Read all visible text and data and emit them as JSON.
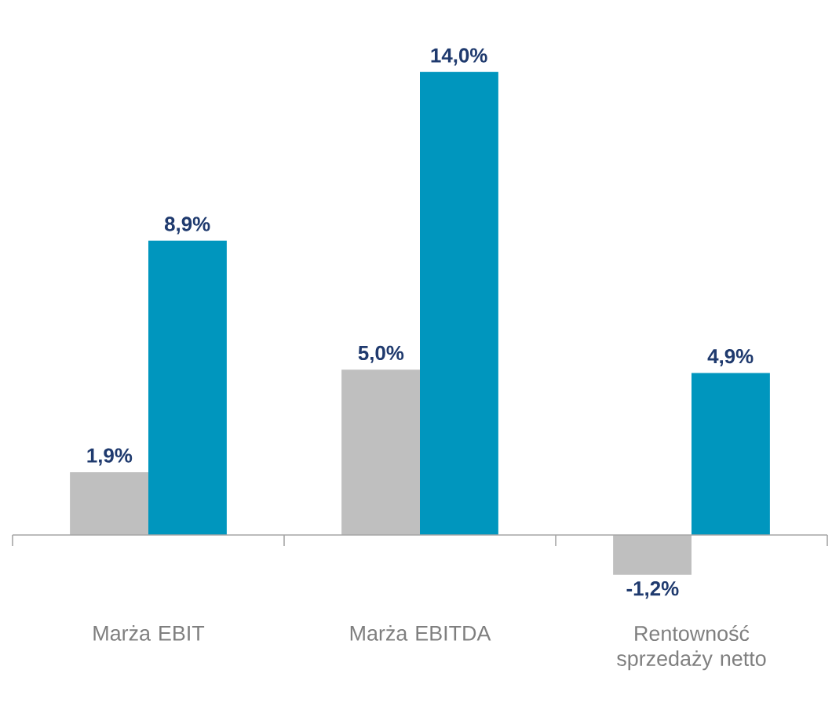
{
  "chart_data": {
    "type": "bar",
    "categories": [
      "Marża EBIT",
      "Marża EBITDA",
      "Rentowność sprzedaży netto"
    ],
    "series": [
      {
        "color": "#bfbfbf",
        "values": [
          1.9,
          5.0,
          -1.2
        ],
        "value_labels": [
          "1,9%",
          "5,0%",
          "-1,2%"
        ]
      },
      {
        "color": "#0096be",
        "values": [
          8.9,
          14.0,
          4.9
        ],
        "value_labels": [
          "8,9%",
          "14,0%",
          "4,9%"
        ]
      }
    ]
  }
}
